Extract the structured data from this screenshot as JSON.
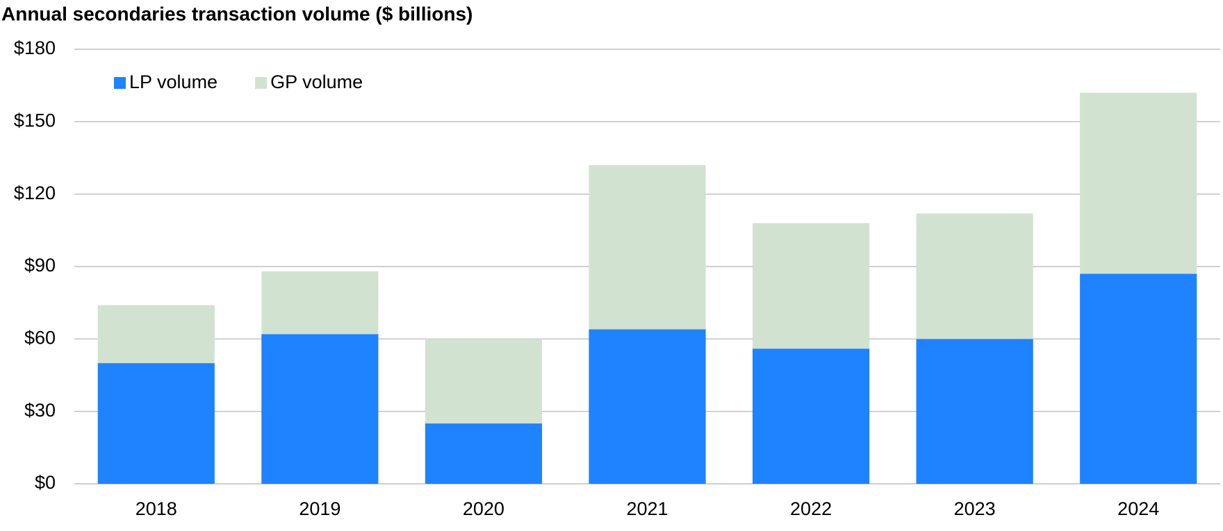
{
  "chart_data": {
    "type": "stacked_bar",
    "title": "Annual secondaries transaction volume ($ billions)",
    "categories": [
      "2018",
      "2019",
      "2020",
      "2021",
      "2022",
      "2023",
      "2024"
    ],
    "series": [
      {
        "name": "LP volume",
        "color": "#1f82ff",
        "values": [
          50,
          62,
          25,
          64,
          56,
          60,
          87
        ]
      },
      {
        "name": "GP volume",
        "color": "#d2e2d0",
        "values": [
          24,
          26,
          35,
          68,
          52,
          52,
          75
        ]
      }
    ],
    "ylim": [
      0,
      180
    ],
    "yticks": [
      {
        "value": 0,
        "label": "$0"
      },
      {
        "value": 30,
        "label": "$30"
      },
      {
        "value": 60,
        "label": "$60"
      },
      {
        "value": 90,
        "label": "$90"
      },
      {
        "value": 120,
        "label": "$120"
      },
      {
        "value": 150,
        "label": "$150"
      },
      {
        "value": 180,
        "label": "$180"
      }
    ],
    "grid": true,
    "legend": "top-left"
  }
}
